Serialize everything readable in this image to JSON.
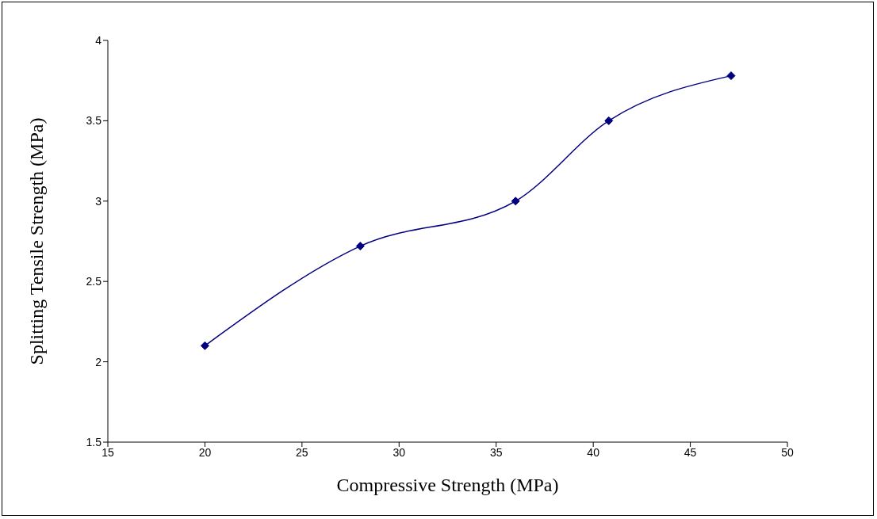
{
  "chart_data": {
    "type": "line",
    "xlabel": "Compressive Strength (MPa)",
    "ylabel": "Splitting Tensile Strength (MPa)",
    "x": [
      20,
      28,
      36,
      40.8,
      47.1
    ],
    "series": [
      {
        "color": "#000080",
        "values": [
          2.1,
          2.72,
          3.0,
          3.5,
          3.78
        ]
      }
    ],
    "xlim": [
      15,
      50
    ],
    "xticks": [
      15,
      20,
      25,
      30,
      35,
      40,
      45,
      50
    ],
    "ylim": [
      1.5,
      4
    ],
    "yticks": [
      1.5,
      2,
      2.5,
      3,
      3.5,
      4
    ],
    "grid": false,
    "legend": false,
    "marker": "diamond",
    "line_style": "solid"
  }
}
